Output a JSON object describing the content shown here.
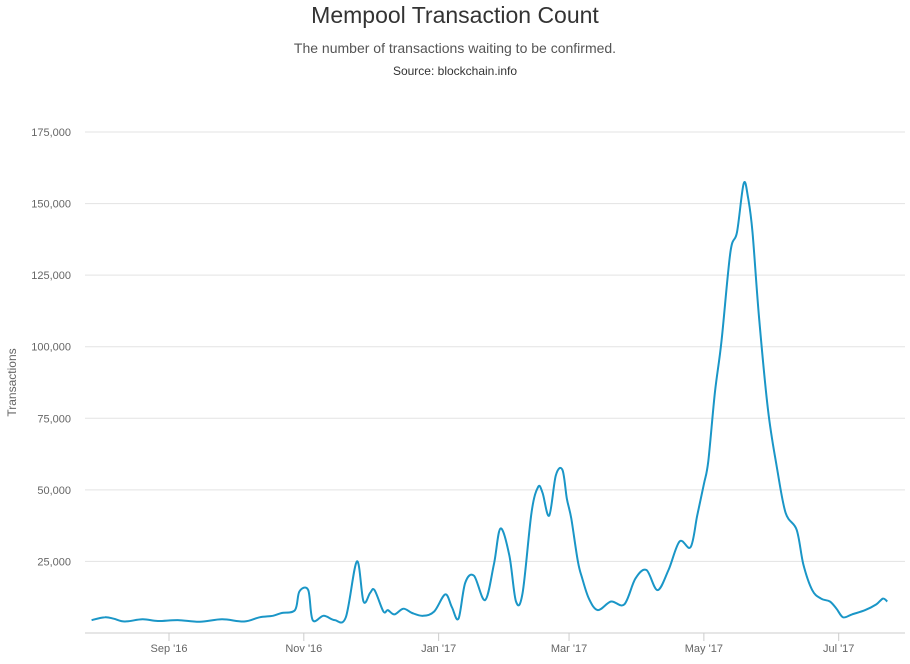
{
  "chart_data": {
    "type": "line",
    "title": "Mempool Transaction Count",
    "subtitle": "The number of transactions waiting to be confirmed.",
    "source": "Source: blockchain.info",
    "ylabel": "Transactions",
    "xlabel": "",
    "ylim": [
      0,
      175000
    ],
    "y_ticks": [
      25000,
      50000,
      75000,
      100000,
      125000,
      150000,
      175000
    ],
    "y_tick_labels": [
      "25,000",
      "50,000",
      "75,000",
      "100,000",
      "125,000",
      "150,000",
      "175,000"
    ],
    "x_range": [
      "2016-07-25",
      "2017-07-31"
    ],
    "x_ticks": [
      "2016-09-01",
      "2016-11-01",
      "2017-01-01",
      "2017-03-01",
      "2017-05-01",
      "2017-07-01"
    ],
    "x_tick_labels": [
      "Sep '16",
      "Nov '16",
      "Jan '17",
      "Mar '17",
      "May '17",
      "Jul '17"
    ],
    "grid": true,
    "legend": "none",
    "line_color": "#1a96c7",
    "series": [
      {
        "x": [
          "2016-07-28",
          "2016-08-03",
          "2016-08-07",
          "2016-08-12",
          "2016-08-20",
          "2016-08-27",
          "2016-09-05",
          "2016-09-15",
          "2016-09-25",
          "2016-10-05",
          "2016-10-12",
          "2016-10-18",
          "2016-10-22",
          "2016-10-28",
          "2016-10-30",
          "2016-11-03",
          "2016-11-05",
          "2016-11-10",
          "2016-11-15",
          "2016-11-20",
          "2016-11-25",
          "2016-11-28",
          "2016-12-01",
          "2016-12-03",
          "2016-12-07",
          "2016-12-09",
          "2016-12-12",
          "2016-12-16",
          "2016-12-20",
          "2016-12-25",
          "2016-12-30",
          "2017-01-04",
          "2017-01-07",
          "2017-01-10",
          "2017-01-13",
          "2017-01-17",
          "2017-01-22",
          "2017-01-26",
          "2017-01-29",
          "2017-02-02",
          "2017-02-05",
          "2017-02-08",
          "2017-02-12",
          "2017-02-15",
          "2017-02-17",
          "2017-02-20",
          "2017-02-23",
          "2017-02-26",
          "2017-02-28",
          "2017-03-02",
          "2017-03-05",
          "2017-03-07",
          "2017-03-10",
          "2017-03-14",
          "2017-03-20",
          "2017-03-26",
          "2017-03-31",
          "2017-04-05",
          "2017-04-10",
          "2017-04-15",
          "2017-04-20",
          "2017-04-25",
          "2017-04-28",
          "2017-05-01",
          "2017-05-03",
          "2017-05-06",
          "2017-05-09",
          "2017-05-13",
          "2017-05-16",
          "2017-05-19",
          "2017-05-21",
          "2017-05-23",
          "2017-05-26",
          "2017-05-30",
          "2017-06-03",
          "2017-06-07",
          "2017-06-12",
          "2017-06-15",
          "2017-06-19",
          "2017-06-23",
          "2017-06-27",
          "2017-06-30",
          "2017-07-03",
          "2017-07-07",
          "2017-07-13",
          "2017-07-18",
          "2017-07-21",
          "2017-07-23"
        ],
        "y": [
          4500,
          5500,
          5000,
          4000,
          4800,
          4200,
          4500,
          3900,
          4800,
          4000,
          5500,
          6000,
          7000,
          8000,
          14500,
          15000,
          4500,
          6000,
          4500,
          5500,
          25000,
          11000,
          14000,
          15000,
          7500,
          8000,
          6500,
          8500,
          7000,
          6000,
          7500,
          13500,
          9000,
          5000,
          17500,
          20000,
          11500,
          24000,
          36500,
          27000,
          11000,
          14000,
          42000,
          51000,
          49000,
          41000,
          55000,
          57000,
          47000,
          40000,
          25000,
          19000,
          12000,
          8000,
          11000,
          10000,
          19000,
          22000,
          15000,
          22000,
          32000,
          30000,
          41000,
          52000,
          60000,
          84000,
          102000,
          133000,
          140000,
          157000,
          152000,
          140000,
          110000,
          78000,
          58000,
          42000,
          36000,
          24000,
          15000,
          12000,
          11000,
          8500,
          5500,
          6500,
          8000,
          10000,
          12000,
          11000
        ]
      }
    ]
  }
}
